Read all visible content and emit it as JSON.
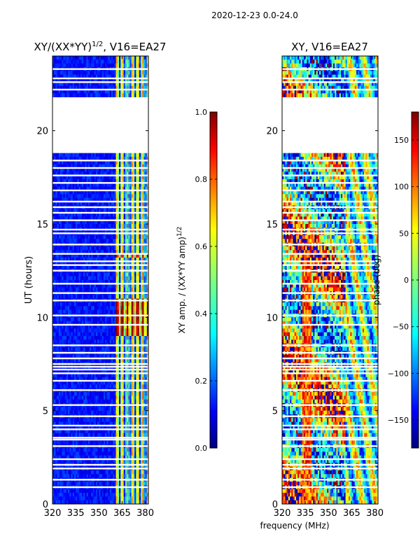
{
  "figure_title": "2020-12-23 0.0-24.0",
  "fig_xlabel": "frequency (MHz)",
  "chart_data": [
    {
      "type": "heatmap",
      "title_main": "XY/(XX*YY)",
      "title_sup": "1/2",
      "title_rest": ", V16=EA27",
      "xlabel": "",
      "ylabel": "UT (hours)",
      "xlim": [
        320,
        382
      ],
      "ylim": [
        0,
        24
      ],
      "xticks": [
        320,
        335,
        350,
        365,
        380
      ],
      "yticks": [
        0,
        5,
        10,
        15,
        20
      ],
      "xtick_labels": [
        "320",
        "335",
        "350",
        "365",
        "380"
      ],
      "ytick_labels": [
        "0",
        "5",
        "10",
        "15",
        "20"
      ],
      "colorbar": {
        "label_main": "XY amp. / (XX*YY amp)",
        "label_sup": "1/2",
        "range": [
          0.0,
          1.0
        ],
        "ticks": [
          0.0,
          0.2,
          0.4,
          0.6,
          0.8,
          1.0
        ],
        "tick_labels": [
          "0.0",
          "0.2",
          "0.4",
          "0.6",
          "0.8",
          "1.0"
        ]
      },
      "data_gap_ut": [
        18.85,
        21.85
      ],
      "flagged_rows_ut": [
        0.9,
        1.3,
        1.9,
        2.1,
        2.4,
        3.1,
        3.45,
        3.55,
        4.0,
        4.2,
        4.7,
        5.3,
        6.1,
        6.6,
        7.0,
        7.2,
        7.35,
        7.5,
        7.8,
        8.1,
        8.5,
        9.6,
        10.1,
        10.9,
        11.3,
        11.8,
        12.5,
        12.8,
        13.0,
        13.4,
        13.9,
        14.5,
        14.7,
        15.2,
        15.6,
        15.9,
        16.2,
        16.8,
        17.2,
        17.6,
        18.0,
        18.4,
        22.2,
        22.6,
        22.8,
        23.3
      ],
      "grid": false,
      "colormap": "jet"
    },
    {
      "type": "heatmap",
      "title": "XY, V16=EA27",
      "xlabel": "",
      "ylabel": "",
      "xlim": [
        320,
        382
      ],
      "ylim": [
        0,
        24
      ],
      "xticks": [
        320,
        335,
        350,
        365,
        380
      ],
      "yticks": [
        0,
        5,
        10,
        15,
        20
      ],
      "xtick_labels": [
        "320",
        "335",
        "350",
        "365",
        "380"
      ],
      "ytick_labels": [
        "0",
        "5",
        "10",
        "15",
        "20"
      ],
      "colorbar": {
        "label": "phase (deg)",
        "range": [
          -180,
          180
        ],
        "ticks": [
          -150,
          -100,
          -50,
          0,
          50,
          100,
          150
        ],
        "tick_labels": [
          "−150",
          "−100",
          "−50",
          "0",
          "50",
          "100",
          "150"
        ]
      },
      "data_gap_ut": [
        18.85,
        21.85
      ],
      "flagged_rows_ut": [
        0.9,
        1.3,
        1.9,
        2.1,
        2.4,
        3.1,
        3.45,
        3.55,
        4.0,
        4.2,
        4.7,
        5.3,
        6.1,
        6.6,
        7.0,
        7.2,
        7.35,
        7.5,
        7.8,
        8.1,
        8.5,
        9.6,
        10.1,
        10.9,
        11.3,
        11.8,
        12.5,
        12.8,
        13.0,
        13.4,
        13.9,
        14.5,
        14.7,
        15.2,
        15.6,
        15.9,
        16.2,
        16.8,
        17.2,
        17.6,
        18.0,
        18.4,
        22.2,
        22.6,
        22.8,
        23.3
      ],
      "grid": false,
      "colormap": "jet"
    }
  ]
}
